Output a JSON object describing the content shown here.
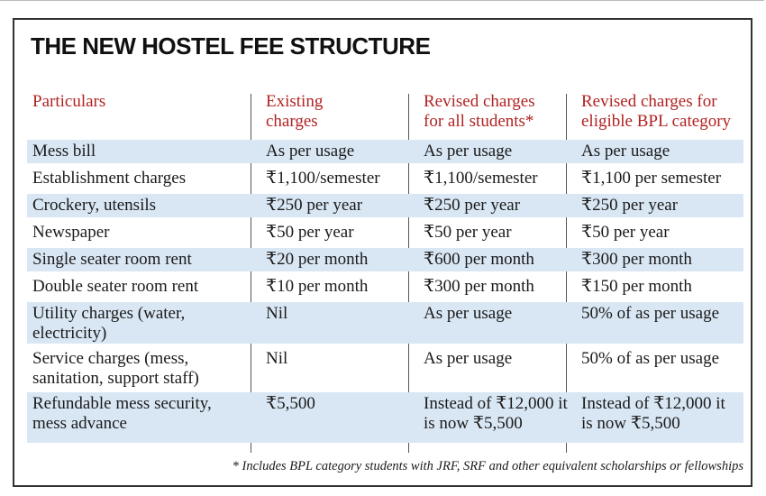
{
  "title": "THE NEW HOSTEL FEE STRUCTURE",
  "headers": [
    "Particulars",
    "Existing charges",
    "Revised charges for all students*",
    "Revised charges for eligible BPL category"
  ],
  "rows": [
    [
      "Mess bill",
      "As per usage",
      "As per usage",
      "As per usage"
    ],
    [
      "Establishment charges",
      "₹1,100/semester",
      "₹1,100/semester",
      "₹1,100 per semester"
    ],
    [
      "Crockery, utensils",
      "₹250 per year",
      "₹250 per year",
      "₹250 per year"
    ],
    [
      "Newspaper",
      "₹50 per year",
      "₹50 per year",
      "₹50 per year"
    ],
    [
      "Single seater room rent",
      "₹20 per month",
      "₹600 per month",
      "₹300 per month"
    ],
    [
      "Double seater room rent",
      "₹10 per month",
      "₹300 per month",
      "₹150 per month"
    ],
    [
      "Utility charges (water, electricity)",
      "Nil",
      "As per usage",
      "50% of as per usage"
    ],
    [
      "Service charges (mess, sanitation, support staff)",
      "Nil",
      "As per usage",
      "50% of as per usage"
    ],
    [
      "Refundable mess security, mess advance",
      "₹5,500",
      "Instead of ₹12,000 it is now ₹5,500",
      "Instead of ₹12,000 it is now ₹5,500"
    ]
  ],
  "footnote": "* Includes BPL category students with JRF, SRF and other equivalent scholarships or fellowships",
  "colors": {
    "header_text": "#b22222",
    "row_shade": "#d9e7f4",
    "border": "#333333"
  }
}
